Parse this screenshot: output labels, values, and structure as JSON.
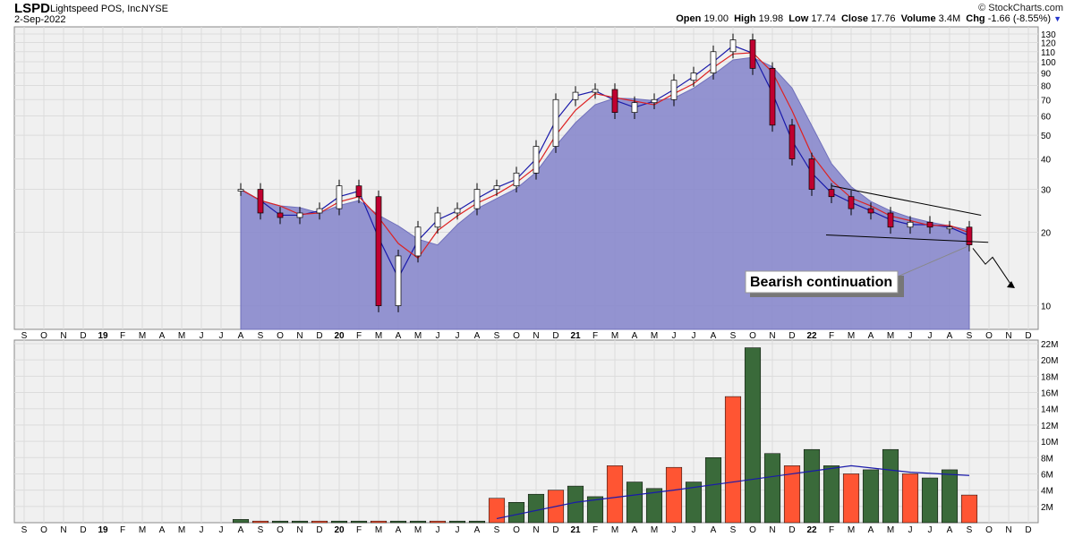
{
  "header": {
    "symbol": "LSPD",
    "company": "Lightspeed POS, Inc.",
    "exchange": "NYSE",
    "date": "2-Sep-2022",
    "brand": "© StockCharts.com",
    "open_label": "Open",
    "open": "19.00",
    "high_label": "High",
    "high": "19.98",
    "low_label": "Low",
    "low": "17.74",
    "close_label": "Close",
    "close": "17.76",
    "volume_label": "Volume",
    "volume": "3.4M",
    "chg_label": "Chg",
    "chg": "-1.66 (-8.55%)",
    "chg_arrow": "▼"
  },
  "annotation": {
    "text": "Bearish continuation"
  },
  "colors": {
    "up": "#ffffff",
    "down": "#c00030",
    "area": "#8888cc",
    "ma_short": "#1a1aaa",
    "ma_long": "#dd2222",
    "vol_up": "#3a6a3a",
    "vol_down": "#ff5533",
    "grid": "#dcdcdc",
    "panel": "#f0f0f0"
  },
  "chart_data": [
    {
      "type": "candlestick",
      "scale": "log",
      "ylim": [
        8,
        130
      ],
      "y_ticks": [
        130,
        120,
        110,
        100,
        90,
        80,
        70,
        60,
        50,
        40,
        30,
        20,
        10
      ],
      "x_ticks": [
        "S",
        "O",
        "N",
        "D",
        "19",
        "F",
        "M",
        "A",
        "M",
        "J",
        "J",
        "A",
        "S",
        "O",
        "N",
        "D",
        "20",
        "F",
        "M",
        "A",
        "M",
        "J",
        "J",
        "A",
        "S",
        "O",
        "N",
        "D",
        "21",
        "F",
        "M",
        "A",
        "M",
        "J",
        "J",
        "A",
        "S",
        "O",
        "N",
        "D",
        "22",
        "F",
        "M",
        "A",
        "M",
        "J",
        "J",
        "A",
        "S",
        "O",
        "N",
        "D"
      ],
      "x_range": [
        "2018-09",
        "2022-12"
      ],
      "close_path": [
        {
          "x": "2019-08",
          "y": 30
        },
        {
          "x": "2019-09",
          "y": 24
        },
        {
          "x": "2019-10",
          "y": 23
        },
        {
          "x": "2019-11",
          "y": 24
        },
        {
          "x": "2019-12",
          "y": 25
        },
        {
          "x": "2020-01",
          "y": 31
        },
        {
          "x": "2020-02",
          "y": 28
        },
        {
          "x": "2020-03",
          "y": 10
        },
        {
          "x": "2020-04",
          "y": 16
        },
        {
          "x": "2020-05",
          "y": 21
        },
        {
          "x": "2020-06",
          "y": 24
        },
        {
          "x": "2020-07",
          "y": 25
        },
        {
          "x": "2020-08",
          "y": 30
        },
        {
          "x": "2020-09",
          "y": 31
        },
        {
          "x": "2020-10",
          "y": 35
        },
        {
          "x": "2020-11",
          "y": 45
        },
        {
          "x": "2020-12",
          "y": 70
        },
        {
          "x": "2021-01",
          "y": 75
        },
        {
          "x": "2021-02",
          "y": 77
        },
        {
          "x": "2021-03",
          "y": 62
        },
        {
          "x": "2021-04",
          "y": 68
        },
        {
          "x": "2021-05",
          "y": 70
        },
        {
          "x": "2021-06",
          "y": 84
        },
        {
          "x": "2021-07",
          "y": 90
        },
        {
          "x": "2021-08",
          "y": 110
        },
        {
          "x": "2021-09",
          "y": 123
        },
        {
          "x": "2021-10",
          "y": 94
        },
        {
          "x": "2021-11",
          "y": 55
        },
        {
          "x": "2021-12",
          "y": 40
        },
        {
          "x": "2022-01",
          "y": 30
        },
        {
          "x": "2022-02",
          "y": 28
        },
        {
          "x": "2022-03",
          "y": 25
        },
        {
          "x": "2022-04",
          "y": 24
        },
        {
          "x": "2022-05",
          "y": 21
        },
        {
          "x": "2022-06",
          "y": 22
        },
        {
          "x": "2022-07",
          "y": 21
        },
        {
          "x": "2022-08",
          "y": 21
        },
        {
          "x": "2022-09",
          "y": 17.76
        }
      ]
    },
    {
      "type": "bar",
      "title": "Volume",
      "ylim": [
        0,
        22
      ],
      "y_ticks": [
        "2M",
        "4M",
        "6M",
        "8M",
        "10M",
        "12M",
        "14M",
        "16M",
        "18M",
        "20M",
        "22M"
      ],
      "x_ticks": [
        "S",
        "O",
        "N",
        "D",
        "19",
        "F",
        "M",
        "A",
        "M",
        "J",
        "J",
        "A",
        "S",
        "O",
        "N",
        "D",
        "20",
        "F",
        "M",
        "A",
        "M",
        "J",
        "J",
        "A",
        "S",
        "O",
        "N",
        "D",
        "21",
        "F",
        "M",
        "A",
        "M",
        "J",
        "J",
        "A",
        "S",
        "O",
        "N",
        "D",
        "22",
        "F",
        "M",
        "A",
        "M",
        "J",
        "J",
        "A",
        "S",
        "O",
        "N",
        "D"
      ],
      "values_millions": [
        {
          "x": "2019-08",
          "v": 0.4
        },
        {
          "x": "2019-09",
          "v": 0.2
        },
        {
          "x": "2019-10",
          "v": 0.2
        },
        {
          "x": "2019-11",
          "v": 0.2
        },
        {
          "x": "2019-12",
          "v": 0.2
        },
        {
          "x": "2020-01",
          "v": 0.2
        },
        {
          "x": "2020-02",
          "v": 0.2
        },
        {
          "x": "2020-03",
          "v": 0.2
        },
        {
          "x": "2020-04",
          "v": 0.2
        },
        {
          "x": "2020-05",
          "v": 0.2
        },
        {
          "x": "2020-06",
          "v": 0.2
        },
        {
          "x": "2020-07",
          "v": 0.2
        },
        {
          "x": "2020-08",
          "v": 0.2
        },
        {
          "x": "2020-09",
          "v": 3.0
        },
        {
          "x": "2020-10",
          "v": 2.5
        },
        {
          "x": "2020-11",
          "v": 3.5
        },
        {
          "x": "2020-12",
          "v": 4.0
        },
        {
          "x": "2021-01",
          "v": 4.5
        },
        {
          "x": "2021-02",
          "v": 3.2
        },
        {
          "x": "2021-03",
          "v": 7.0
        },
        {
          "x": "2021-04",
          "v": 5.0
        },
        {
          "x": "2021-05",
          "v": 4.2
        },
        {
          "x": "2021-06",
          "v": 6.8
        },
        {
          "x": "2021-07",
          "v": 5.0
        },
        {
          "x": "2021-08",
          "v": 8.0
        },
        {
          "x": "2021-09",
          "v": 15.5
        },
        {
          "x": "2021-10",
          "v": 21.5
        },
        {
          "x": "2021-11",
          "v": 8.5
        },
        {
          "x": "2021-12",
          "v": 7.0
        },
        {
          "x": "2022-01",
          "v": 9.0
        },
        {
          "x": "2022-02",
          "v": 7.0
        },
        {
          "x": "2022-03",
          "v": 6.0
        },
        {
          "x": "2022-04",
          "v": 6.5
        },
        {
          "x": "2022-05",
          "v": 9.0
        },
        {
          "x": "2022-06",
          "v": 6.0
        },
        {
          "x": "2022-07",
          "v": 5.5
        },
        {
          "x": "2022-08",
          "v": 6.5
        },
        {
          "x": "2022-09",
          "v": 3.4
        }
      ],
      "avg_line_millions": [
        {
          "x": "2020-09",
          "v": 0.5
        },
        {
          "x": "2021-01",
          "v": 2.5
        },
        {
          "x": "2021-06",
          "v": 4.0
        },
        {
          "x": "2021-09",
          "v": 5.0
        },
        {
          "x": "2021-12",
          "v": 6.0
        },
        {
          "x": "2022-03",
          "v": 7.0
        },
        {
          "x": "2022-06",
          "v": 6.2
        },
        {
          "x": "2022-09",
          "v": 5.8
        }
      ]
    }
  ]
}
